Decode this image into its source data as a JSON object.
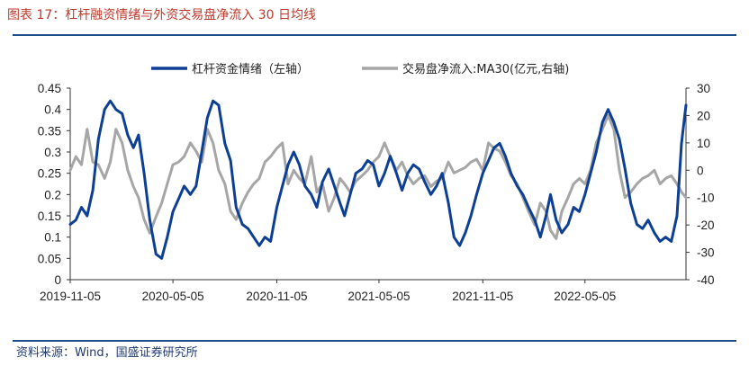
{
  "header": {
    "title": "图表 17：杠杆融资情绪与外资交易盘净流入 30 日均线"
  },
  "footer": {
    "source": "资料来源：Wind，国盛证券研究所"
  },
  "colors": {
    "leverage": "#0d3f94",
    "foreign": "#a6a6a6",
    "accent": "#c0392b",
    "rule": "#1f4e8c"
  },
  "chart_data": {
    "type": "line",
    "title": "杠杆融资情绪与外资交易盘净流入 30 日均线",
    "legend": [
      "杠杆资金情绪（左轴）",
      "交易盘净流入:MA30(亿元,右轴)"
    ],
    "legend_position": "top-center",
    "x_tick_labels": [
      "2019-11-05",
      "2020-05-05",
      "2020-11-05",
      "2021-05-05",
      "2021-11-05",
      "2022-05-05"
    ],
    "x_tick_dates": [
      "2019-11-05",
      "2020-05-05",
      "2020-11-05",
      "2021-05-05",
      "2021-11-05",
      "2022-05-05"
    ],
    "x_range": [
      "2019-11-05",
      "2022-10-31"
    ],
    "y_left": {
      "label": "杠杆资金情绪",
      "ylim": [
        0,
        0.45
      ],
      "ticks": [
        "0",
        "0.05",
        "0.1",
        "0.15",
        "0.2",
        "0.25",
        "0.3",
        "0.35",
        "0.4",
        "0.45"
      ]
    },
    "y_right": {
      "label": "亿元",
      "ylim": [
        -40,
        30
      ],
      "ticks": [
        "-40",
        "-30",
        "-20",
        "-10",
        "0",
        "10",
        "20",
        "30"
      ]
    },
    "series": [
      {
        "name": "杠杆资金情绪（左轴）",
        "axis": "left",
        "color": "#0d3f94",
        "points": [
          [
            "2019-11-05",
            0.13
          ],
          [
            "2019-11-15",
            0.14
          ],
          [
            "2019-11-25",
            0.17
          ],
          [
            "2019-12-05",
            0.15
          ],
          [
            "2019-12-15",
            0.21
          ],
          [
            "2019-12-25",
            0.33
          ],
          [
            "2020-01-05",
            0.4
          ],
          [
            "2020-01-15",
            0.42
          ],
          [
            "2020-01-25",
            0.4
          ],
          [
            "2020-02-05",
            0.39
          ],
          [
            "2020-02-15",
            0.34
          ],
          [
            "2020-02-25",
            0.31
          ],
          [
            "2020-03-05",
            0.34
          ],
          [
            "2020-03-15",
            0.25
          ],
          [
            "2020-03-25",
            0.14
          ],
          [
            "2020-04-05",
            0.06
          ],
          [
            "2020-04-15",
            0.05
          ],
          [
            "2020-04-25",
            0.1
          ],
          [
            "2020-05-05",
            0.16
          ],
          [
            "2020-05-15",
            0.19
          ],
          [
            "2020-05-25",
            0.22
          ],
          [
            "2020-06-05",
            0.2
          ],
          [
            "2020-06-15",
            0.22
          ],
          [
            "2020-06-25",
            0.3
          ],
          [
            "2020-07-05",
            0.38
          ],
          [
            "2020-07-15",
            0.42
          ],
          [
            "2020-07-25",
            0.41
          ],
          [
            "2020-08-05",
            0.32
          ],
          [
            "2020-08-15",
            0.28
          ],
          [
            "2020-08-25",
            0.17
          ],
          [
            "2020-09-05",
            0.13
          ],
          [
            "2020-09-15",
            0.12
          ],
          [
            "2020-09-25",
            0.1
          ],
          [
            "2020-10-05",
            0.08
          ],
          [
            "2020-10-15",
            0.1
          ],
          [
            "2020-10-25",
            0.09
          ],
          [
            "2020-11-05",
            0.17
          ],
          [
            "2020-11-15",
            0.22
          ],
          [
            "2020-11-25",
            0.27
          ],
          [
            "2020-12-05",
            0.3
          ],
          [
            "2020-12-15",
            0.27
          ],
          [
            "2020-12-25",
            0.22
          ],
          [
            "2021-01-05",
            0.2
          ],
          [
            "2021-01-15",
            0.17
          ],
          [
            "2021-01-25",
            0.23
          ],
          [
            "2021-02-05",
            0.26
          ],
          [
            "2021-02-15",
            0.22
          ],
          [
            "2021-02-25",
            0.18
          ],
          [
            "2021-03-05",
            0.15
          ],
          [
            "2021-03-15",
            0.2
          ],
          [
            "2021-03-25",
            0.25
          ],
          [
            "2021-04-05",
            0.26
          ],
          [
            "2021-04-15",
            0.28
          ],
          [
            "2021-04-25",
            0.27
          ],
          [
            "2021-05-05",
            0.22
          ],
          [
            "2021-05-15",
            0.25
          ],
          [
            "2021-05-25",
            0.29
          ],
          [
            "2021-06-05",
            0.25
          ],
          [
            "2021-06-15",
            0.21
          ],
          [
            "2021-06-25",
            0.25
          ],
          [
            "2021-07-05",
            0.27
          ],
          [
            "2021-07-15",
            0.26
          ],
          [
            "2021-07-25",
            0.23
          ],
          [
            "2021-08-05",
            0.2
          ],
          [
            "2021-08-15",
            0.22
          ],
          [
            "2021-08-25",
            0.25
          ],
          [
            "2021-09-05",
            0.18
          ],
          [
            "2021-09-15",
            0.1
          ],
          [
            "2021-09-25",
            0.08
          ],
          [
            "2021-10-05",
            0.11
          ],
          [
            "2021-10-15",
            0.15
          ],
          [
            "2021-10-25",
            0.2
          ],
          [
            "2021-11-05",
            0.25
          ],
          [
            "2021-11-15",
            0.28
          ],
          [
            "2021-11-25",
            0.31
          ],
          [
            "2021-12-05",
            0.32
          ],
          [
            "2021-12-15",
            0.29
          ],
          [
            "2021-12-25",
            0.25
          ],
          [
            "2022-01-05",
            0.22
          ],
          [
            "2022-01-15",
            0.2
          ],
          [
            "2022-01-25",
            0.17
          ],
          [
            "2022-02-05",
            0.14
          ],
          [
            "2022-02-15",
            0.1
          ],
          [
            "2022-02-25",
            0.15
          ],
          [
            "2022-03-05",
            0.2
          ],
          [
            "2022-03-15",
            0.14
          ],
          [
            "2022-03-25",
            0.11
          ],
          [
            "2022-04-05",
            0.13
          ],
          [
            "2022-04-15",
            0.17
          ],
          [
            "2022-04-25",
            0.16
          ],
          [
            "2022-05-05",
            0.2
          ],
          [
            "2022-05-15",
            0.25
          ],
          [
            "2022-05-25",
            0.3
          ],
          [
            "2022-06-05",
            0.37
          ],
          [
            "2022-06-15",
            0.4
          ],
          [
            "2022-06-25",
            0.37
          ],
          [
            "2022-07-05",
            0.33
          ],
          [
            "2022-07-15",
            0.26
          ],
          [
            "2022-07-25",
            0.18
          ],
          [
            "2022-08-05",
            0.13
          ],
          [
            "2022-08-15",
            0.12
          ],
          [
            "2022-08-25",
            0.14
          ],
          [
            "2022-09-05",
            0.11
          ],
          [
            "2022-09-15",
            0.09
          ],
          [
            "2022-09-25",
            0.1
          ],
          [
            "2022-10-05",
            0.09
          ],
          [
            "2022-10-15",
            0.15
          ],
          [
            "2022-10-23",
            0.32
          ],
          [
            "2022-10-31",
            0.41
          ]
        ]
      },
      {
        "name": "交易盘净流入:MA30(亿元,右轴)",
        "axis": "right",
        "color": "#a6a6a6",
        "points": [
          [
            "2019-11-05",
            0
          ],
          [
            "2019-11-15",
            5
          ],
          [
            "2019-11-25",
            2
          ],
          [
            "2019-12-05",
            15
          ],
          [
            "2019-12-15",
            3
          ],
          [
            "2019-12-25",
            2
          ],
          [
            "2020-01-05",
            -3
          ],
          [
            "2020-01-15",
            3
          ],
          [
            "2020-01-25",
            15
          ],
          [
            "2020-02-05",
            10
          ],
          [
            "2020-02-15",
            0
          ],
          [
            "2020-02-25",
            -6
          ],
          [
            "2020-03-05",
            -10
          ],
          [
            "2020-03-15",
            -18
          ],
          [
            "2020-03-25",
            -23
          ],
          [
            "2020-04-05",
            -17
          ],
          [
            "2020-04-15",
            -12
          ],
          [
            "2020-04-25",
            -5
          ],
          [
            "2020-05-05",
            2
          ],
          [
            "2020-05-15",
            3
          ],
          [
            "2020-05-25",
            5
          ],
          [
            "2020-06-05",
            10
          ],
          [
            "2020-06-15",
            7
          ],
          [
            "2020-06-25",
            3
          ],
          [
            "2020-07-05",
            15
          ],
          [
            "2020-07-15",
            10
          ],
          [
            "2020-07-25",
            0
          ],
          [
            "2020-08-05",
            -5
          ],
          [
            "2020-08-15",
            -15
          ],
          [
            "2020-08-25",
            -18
          ],
          [
            "2020-09-05",
            -12
          ],
          [
            "2020-09-15",
            -8
          ],
          [
            "2020-09-25",
            -5
          ],
          [
            "2020-10-05",
            -3
          ],
          [
            "2020-10-15",
            3
          ],
          [
            "2020-10-25",
            5
          ],
          [
            "2020-11-05",
            8
          ],
          [
            "2020-11-15",
            10
          ],
          [
            "2020-11-25",
            -5
          ],
          [
            "2020-12-05",
            0
          ],
          [
            "2020-12-15",
            -3
          ],
          [
            "2020-12-25",
            -5
          ],
          [
            "2021-01-05",
            5
          ],
          [
            "2021-01-15",
            -8
          ],
          [
            "2021-01-25",
            -5
          ],
          [
            "2021-02-05",
            -15
          ],
          [
            "2021-02-15",
            -10
          ],
          [
            "2021-02-25",
            -3
          ],
          [
            "2021-03-05",
            -5
          ],
          [
            "2021-03-15",
            -8
          ],
          [
            "2021-03-25",
            -4
          ],
          [
            "2021-04-05",
            -2
          ],
          [
            "2021-04-15",
            0
          ],
          [
            "2021-04-25",
            3
          ],
          [
            "2021-05-05",
            5
          ],
          [
            "2021-05-15",
            10
          ],
          [
            "2021-05-25",
            5
          ],
          [
            "2021-06-05",
            0
          ],
          [
            "2021-06-15",
            3
          ],
          [
            "2021-06-25",
            -2
          ],
          [
            "2021-07-05",
            -5
          ],
          [
            "2021-07-15",
            -3
          ],
          [
            "2021-07-25",
            -2
          ],
          [
            "2021-08-05",
            -6
          ],
          [
            "2021-08-15",
            -4
          ],
          [
            "2021-08-25",
            -3
          ],
          [
            "2021-09-05",
            3
          ],
          [
            "2021-09-15",
            -1
          ],
          [
            "2021-09-25",
            0
          ],
          [
            "2021-10-05",
            1
          ],
          [
            "2021-10-15",
            3
          ],
          [
            "2021-10-25",
            4
          ],
          [
            "2021-11-05",
            0
          ],
          [
            "2021-11-15",
            10
          ],
          [
            "2021-11-25",
            8
          ],
          [
            "2021-12-05",
            7
          ],
          [
            "2021-12-15",
            3
          ],
          [
            "2021-12-25",
            -2
          ],
          [
            "2022-01-05",
            -5
          ],
          [
            "2022-01-15",
            -10
          ],
          [
            "2022-01-25",
            -15
          ],
          [
            "2022-02-05",
            -20
          ],
          [
            "2022-02-15",
            -12
          ],
          [
            "2022-02-25",
            -15
          ],
          [
            "2022-03-05",
            -22
          ],
          [
            "2022-03-15",
            -25
          ],
          [
            "2022-03-25",
            -15
          ],
          [
            "2022-04-05",
            -10
          ],
          [
            "2022-04-15",
            -5
          ],
          [
            "2022-04-25",
            -3
          ],
          [
            "2022-05-05",
            -5
          ],
          [
            "2022-05-15",
            0
          ],
          [
            "2022-05-25",
            10
          ],
          [
            "2022-06-05",
            15
          ],
          [
            "2022-06-15",
            20
          ],
          [
            "2022-06-25",
            15
          ],
          [
            "2022-07-05",
            0
          ],
          [
            "2022-07-15",
            -10
          ],
          [
            "2022-07-25",
            -8
          ],
          [
            "2022-08-05",
            -5
          ],
          [
            "2022-08-15",
            -3
          ],
          [
            "2022-08-25",
            -2
          ],
          [
            "2022-09-05",
            0
          ],
          [
            "2022-09-15",
            -5
          ],
          [
            "2022-09-25",
            -3
          ],
          [
            "2022-10-05",
            -2
          ],
          [
            "2022-10-15",
            -5
          ],
          [
            "2022-10-23",
            -8
          ],
          [
            "2022-10-31",
            -10
          ]
        ]
      }
    ]
  }
}
